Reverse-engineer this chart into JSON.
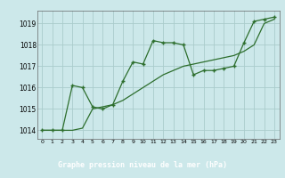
{
  "title": "Graphe pression niveau de la mer (hPa)",
  "bg_color": "#cce8ea",
  "grid_color": "#aacccc",
  "line_color": "#2d6e2d",
  "title_bg": "#5a8a5a",
  "title_fg": "#ffffff",
  "xlim": [
    -0.5,
    23.5
  ],
  "ylim": [
    1013.6,
    1019.6
  ],
  "yticks": [
    1014,
    1015,
    1016,
    1017,
    1018,
    1019
  ],
  "xticks": [
    0,
    1,
    2,
    3,
    4,
    5,
    6,
    7,
    8,
    9,
    10,
    11,
    12,
    13,
    14,
    15,
    16,
    17,
    18,
    19,
    20,
    21,
    22,
    23
  ],
  "line1_x": [
    0,
    1,
    2,
    3,
    4,
    5,
    6,
    7,
    8,
    9,
    10,
    11,
    12,
    13,
    14,
    15,
    16,
    17,
    18,
    19,
    20,
    21,
    22,
    23
  ],
  "line1_y": [
    1014.0,
    1014.0,
    1014.0,
    1016.1,
    1016.0,
    1015.1,
    1015.0,
    1015.2,
    1016.3,
    1017.2,
    1017.1,
    1018.2,
    1018.1,
    1018.1,
    1018.0,
    1016.6,
    1016.8,
    1016.8,
    1016.9,
    1017.0,
    1018.1,
    1019.1,
    1019.2,
    1019.3
  ],
  "line2_x": [
    0,
    1,
    2,
    3,
    4,
    5,
    6,
    7,
    8,
    9,
    10,
    11,
    12,
    13,
    14,
    15,
    16,
    17,
    18,
    19,
    20,
    21,
    22,
    23
  ],
  "line2_y": [
    1014.0,
    1014.0,
    1014.0,
    1014.0,
    1014.1,
    1015.0,
    1015.1,
    1015.2,
    1015.4,
    1015.7,
    1016.0,
    1016.3,
    1016.6,
    1016.8,
    1017.0,
    1017.1,
    1017.2,
    1017.3,
    1017.4,
    1017.5,
    1017.7,
    1018.0,
    1019.0,
    1019.2
  ],
  "fig_width": 3.2,
  "fig_height": 2.0,
  "dpi": 100
}
